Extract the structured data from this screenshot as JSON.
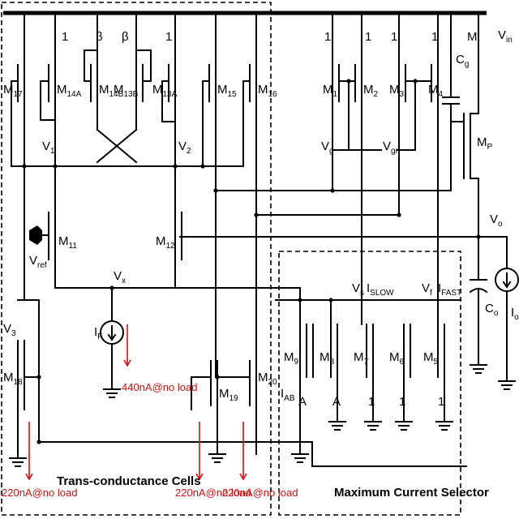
{
  "supply": {
    "vin": "V",
    "vin_sub": "in"
  },
  "transistors": {
    "m17": {
      "main": "M",
      "sub": "17"
    },
    "m14a": {
      "main": "M",
      "sub": "14A"
    },
    "m14b": {
      "main": "M",
      "sub": "14B"
    },
    "m13b": {
      "main": "M",
      "sub": "13B"
    },
    "m13a": {
      "main": "M",
      "sub": "13A"
    },
    "m15": {
      "main": "M",
      "sub": "15"
    },
    "m16": {
      "main": "M",
      "sub": "16"
    },
    "m1": {
      "main": "M",
      "sub": "1"
    },
    "m2": {
      "main": "M",
      "sub": "2"
    },
    "m3": {
      "main": "M",
      "sub": "3"
    },
    "m4": {
      "main": "M",
      "sub": "4"
    },
    "mp": {
      "main": "M",
      "sub": "P"
    },
    "m11": {
      "main": "M",
      "sub": "11"
    },
    "m12": {
      "main": "M",
      "sub": "12"
    },
    "m18": {
      "main": "M",
      "sub": "18"
    },
    "m19": {
      "main": "M",
      "sub": "19"
    },
    "m20": {
      "main": "M",
      "sub": "20"
    },
    "m9": {
      "main": "M",
      "sub": "9"
    },
    "m8": {
      "main": "M",
      "sub": "8"
    },
    "m7": {
      "main": "M",
      "sub": "7"
    },
    "m6": {
      "main": "M",
      "sub": "6"
    },
    "m5": {
      "main": "M",
      "sub": "5"
    }
  },
  "ratios": {
    "one": "1",
    "beta": "β",
    "m": "M",
    "a": "A"
  },
  "nodes": {
    "v1": {
      "main": "V",
      "sub": "1"
    },
    "v2": {
      "main": "V",
      "sub": "2"
    },
    "v3": {
      "main": "V",
      "sub": "3"
    },
    "vg": {
      "main": "V",
      "sub": "g"
    },
    "vgr": {
      "main": "V",
      "sub": "gr"
    },
    "vref": {
      "main": "V",
      "sub": "ref"
    },
    "vx": {
      "main": "V",
      "sub": "x"
    },
    "vo": {
      "main": "V",
      "sub": "o"
    },
    "vs": {
      "main": "V",
      "sub": "s"
    },
    "vf": {
      "main": "V",
      "sub": "f"
    }
  },
  "sources": {
    "if": {
      "main": "I",
      "sub": "F"
    },
    "io": {
      "main": "I",
      "sub": "o"
    },
    "islow": {
      "main": "I",
      "sub": "SLOW"
    },
    "ifast": {
      "main": "I",
      "sub": "FAST"
    },
    "iab": {
      "main": "I",
      "sub": "AB"
    }
  },
  "caps": {
    "cg": {
      "main": "C",
      "sub": "g"
    },
    "co": {
      "main": "C",
      "sub": "o"
    }
  },
  "currents": {
    "c440": "440nA@no load",
    "c220a": "220nA@no load",
    "c220b": "220nA@no load",
    "c220c": "220nA@no load"
  },
  "sections": {
    "tc": "Trans-conductance Cells",
    "mcs": "Maximum Current Selector"
  }
}
